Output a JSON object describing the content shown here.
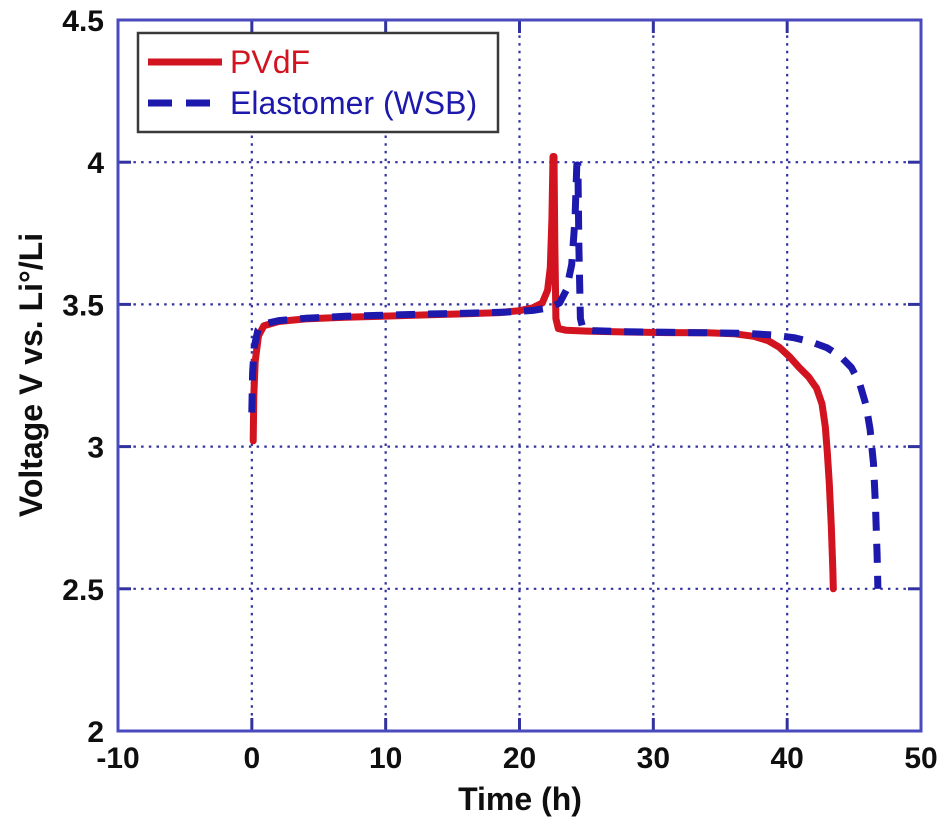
{
  "figure": {
    "background": "#ffffff",
    "frame_color": "#4a49bd",
    "grid_color": "#32329e",
    "tick_color": "#32329e",
    "text_color": "#0f0f0f",
    "legend_border_color": "#3a3a3a",
    "legend_background": "#ffffff"
  },
  "chart_data": {
    "type": "line",
    "title": "",
    "xlabel": "Time (h)",
    "ylabel": "Voltage V vs. Li°/Li",
    "xlim": [
      -10,
      50
    ],
    "ylim": [
      2,
      4.5
    ],
    "xticks": {
      "values": [
        -10,
        0,
        10,
        20,
        30,
        40,
        50
      ],
      "labels": [
        "-10",
        "0",
        "10",
        "20",
        "30",
        "40",
        "50"
      ]
    },
    "yticks": {
      "values": [
        2,
        2.5,
        3,
        3.5,
        4,
        4.5
      ],
      "labels": [
        "2",
        "2.5",
        "3",
        "3.5",
        "4",
        "4.5"
      ]
    },
    "grid": "dotted",
    "legend_position": "top-left-inside",
    "series": [
      {
        "name": "PVdF",
        "color": "#d21320",
        "line_style": "solid",
        "line_width": 7,
        "points": [
          [
            0.1,
            3.02
          ],
          [
            0.15,
            3.18
          ],
          [
            0.25,
            3.3
          ],
          [
            0.5,
            3.39
          ],
          [
            0.9,
            3.425
          ],
          [
            2,
            3.44
          ],
          [
            4,
            3.449
          ],
          [
            7,
            3.455
          ],
          [
            10,
            3.459
          ],
          [
            13,
            3.463
          ],
          [
            16,
            3.467
          ],
          [
            18.5,
            3.471
          ],
          [
            20,
            3.478
          ],
          [
            21,
            3.488
          ],
          [
            21.7,
            3.505
          ],
          [
            22.1,
            3.55
          ],
          [
            22.3,
            3.63
          ],
          [
            22.42,
            3.8
          ],
          [
            22.5,
            4.02
          ],
          [
            22.58,
            4.02
          ],
          [
            22.64,
            3.72
          ],
          [
            22.72,
            3.45
          ],
          [
            22.9,
            3.415
          ],
          [
            23.5,
            3.409
          ],
          [
            25,
            3.406
          ],
          [
            28,
            3.403
          ],
          [
            31,
            3.401
          ],
          [
            34,
            3.4
          ],
          [
            36,
            3.397
          ],
          [
            37.5,
            3.388
          ],
          [
            38.6,
            3.372
          ],
          [
            39.4,
            3.35
          ],
          [
            40.2,
            3.315
          ],
          [
            40.9,
            3.278
          ],
          [
            41.6,
            3.245
          ],
          [
            42.2,
            3.205
          ],
          [
            42.6,
            3.15
          ],
          [
            42.85,
            3.07
          ],
          [
            43.0,
            2.98
          ],
          [
            43.15,
            2.87
          ],
          [
            43.3,
            2.72
          ],
          [
            43.42,
            2.56
          ],
          [
            43.45,
            2.5
          ]
        ]
      },
      {
        "name": "Elastomer (WSB)",
        "color": "#1c19ac",
        "line_style": "dashed",
        "line_width": 7,
        "points": [
          [
            0.0,
            3.12
          ],
          [
            0.06,
            3.26
          ],
          [
            0.18,
            3.35
          ],
          [
            0.45,
            3.41
          ],
          [
            1,
            3.432
          ],
          [
            2,
            3.443
          ],
          [
            4,
            3.451
          ],
          [
            7,
            3.458
          ],
          [
            10,
            3.462
          ],
          [
            13,
            3.466
          ],
          [
            16,
            3.469
          ],
          [
            19,
            3.473
          ],
          [
            21,
            3.479
          ],
          [
            22.3,
            3.489
          ],
          [
            23.0,
            3.505
          ],
          [
            23.5,
            3.55
          ],
          [
            23.9,
            3.64
          ],
          [
            24.15,
            3.8
          ],
          [
            24.28,
            3.99
          ],
          [
            24.36,
            3.99
          ],
          [
            24.44,
            3.7
          ],
          [
            24.55,
            3.45
          ],
          [
            24.75,
            3.413
          ],
          [
            25.5,
            3.408
          ],
          [
            28,
            3.404
          ],
          [
            31,
            3.402
          ],
          [
            34,
            3.4
          ],
          [
            37,
            3.398
          ],
          [
            39,
            3.392
          ],
          [
            40.5,
            3.383
          ],
          [
            41.8,
            3.368
          ],
          [
            43.0,
            3.347
          ],
          [
            44.0,
            3.316
          ],
          [
            44.8,
            3.278
          ],
          [
            45.4,
            3.225
          ],
          [
            45.9,
            3.145
          ],
          [
            46.2,
            3.06
          ],
          [
            46.45,
            2.94
          ],
          [
            46.6,
            2.79
          ],
          [
            46.72,
            2.62
          ],
          [
            46.78,
            2.5
          ]
        ]
      }
    ]
  }
}
